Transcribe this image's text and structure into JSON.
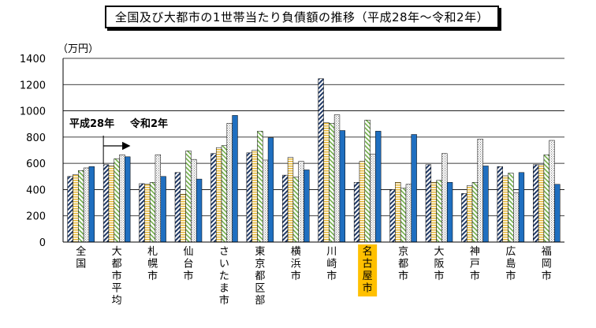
{
  "chart_data": {
    "type": "bar",
    "title": "全国及び大都市の1世帯当たり負債額の推移（平成28年～令和2年）",
    "unit_label": "（万円）",
    "ylim": [
      0,
      1400
    ],
    "yticks": [
      "0",
      "200",
      "400",
      "600",
      "800",
      "1000",
      "1200",
      "1400"
    ],
    "grid": true,
    "categories": [
      "全国",
      "大都市平均",
      "札幌市",
      "仙台市",
      "さいたま市",
      "東京都区部",
      "横浜市",
      "川崎市",
      "名古屋市",
      "京都市",
      "大阪市",
      "神戸市",
      "広島市",
      "福岡市"
    ],
    "highlight_category": "名古屋市",
    "highlight_color": "#ffc000",
    "annotation": {
      "from_label": "平成28年",
      "to_label": "令和2年"
    },
    "series": [
      {
        "key": "H28",
        "pattern": "diagonal-stripes",
        "color": "#1f3864",
        "values": [
          500,
          590,
          445,
          530,
          675,
          680,
          510,
          1245,
          455,
          400,
          590,
          370,
          575,
          590
        ]
      },
      {
        "key": "H29",
        "pattern": "horizontal-stripes",
        "color": "#e4b533",
        "values": [
          515,
          580,
          440,
          365,
          720,
          700,
          645,
          910,
          615,
          455,
          455,
          430,
          505,
          590
        ]
      },
      {
        "key": "H30",
        "pattern": "diagonal-stripes",
        "color": "#70ad47",
        "values": [
          545,
          635,
          455,
          695,
          735,
          845,
          495,
          905,
          930,
          410,
          470,
          455,
          525,
          665
        ]
      },
      {
        "key": "R1",
        "pattern": "dots",
        "color": "#808080",
        "values": [
          565,
          665,
          665,
          630,
          905,
          625,
          615,
          970,
          670,
          440,
          675,
          785,
          375,
          775
        ]
      },
      {
        "key": "R2",
        "pattern": "solid",
        "color": "#1f6fc0",
        "values": [
          575,
          650,
          500,
          480,
          965,
          795,
          550,
          850,
          845,
          820,
          455,
          580,
          530,
          440
        ]
      }
    ]
  }
}
